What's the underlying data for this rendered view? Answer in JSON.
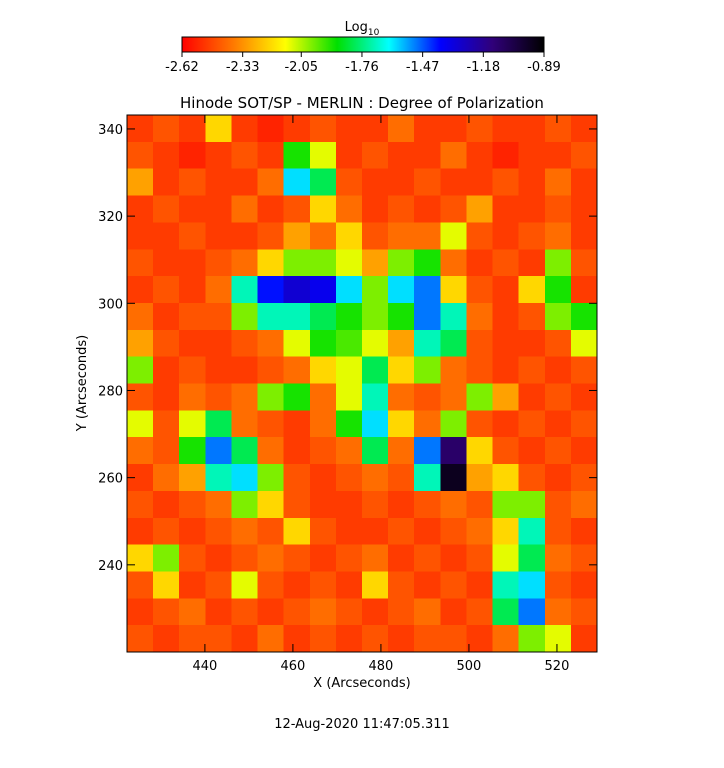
{
  "chart_data": {
    "type": "heatmap",
    "title": "Hinode SOT/SP - MERLIN : Degree of Polarization",
    "xlabel": "X (Arcseconds)",
    "ylabel": "Y (Arcseconds)",
    "footer": "12-Aug-2020 11:47:05.311",
    "colorbar_label": "Log",
    "colorbar_label_subscript": "10",
    "clim": [
      -2.62,
      -0.89
    ],
    "cticks": [
      -2.62,
      -2.33,
      -2.05,
      -1.76,
      -1.47,
      -1.18,
      -0.89
    ],
    "colormap": [
      "#ff0000",
      "#ff7a00",
      "#ffff00",
      "#00e000",
      "#00ffff",
      "#0000ff",
      "#30007a",
      "#000000"
    ],
    "xlim": [
      422.3,
      529.1
    ],
    "ylim": [
      220,
      343.2
    ],
    "xticks": [
      440,
      460,
      480,
      500,
      520
    ],
    "yticks": [
      240,
      260,
      280,
      300,
      320,
      340
    ],
    "z": [
      [
        -2.5,
        -2.45,
        -2.5,
        -2.2,
        -2.5,
        -2.55,
        -2.5,
        -2.45,
        -2.5,
        -2.5,
        -2.4,
        -2.5,
        -2.5,
        -2.45,
        -2.5,
        -2.5,
        -2.45,
        -2.5
      ],
      [
        -2.45,
        -2.5,
        -2.55,
        -2.5,
        -2.45,
        -2.5,
        -1.9,
        -2.1,
        -2.5,
        -2.45,
        -2.5,
        -2.5,
        -2.4,
        -2.5,
        -2.55,
        -2.5,
        -2.5,
        -2.45
      ],
      [
        -2.3,
        -2.5,
        -2.45,
        -2.5,
        -2.5,
        -2.4,
        -1.6,
        -1.8,
        -2.45,
        -2.5,
        -2.5,
        -2.45,
        -2.5,
        -2.5,
        -2.45,
        -2.5,
        -2.4,
        -2.5
      ],
      [
        -2.5,
        -2.45,
        -2.5,
        -2.5,
        -2.4,
        -2.5,
        -2.45,
        -2.2,
        -2.4,
        -2.5,
        -2.45,
        -2.5,
        -2.45,
        -2.3,
        -2.5,
        -2.5,
        -2.45,
        -2.5
      ],
      [
        -2.5,
        -2.5,
        -2.45,
        -2.5,
        -2.5,
        -2.45,
        -2.3,
        -2.4,
        -2.2,
        -2.45,
        -2.4,
        -2.4,
        -2.1,
        -2.45,
        -2.5,
        -2.45,
        -2.4,
        -2.5
      ],
      [
        -2.45,
        -2.5,
        -2.5,
        -2.45,
        -2.4,
        -2.2,
        -2.0,
        -2.0,
        -2.1,
        -2.3,
        -2.0,
        -1.9,
        -2.4,
        -2.5,
        -2.45,
        -2.5,
        -2.0,
        -2.45
      ],
      [
        -2.5,
        -2.45,
        -2.5,
        -2.4,
        -1.7,
        -1.4,
        -1.3,
        -1.35,
        -1.6,
        -2.0,
        -1.6,
        -1.5,
        -2.2,
        -2.45,
        -2.5,
        -2.2,
        -1.9,
        -2.5
      ],
      [
        -2.4,
        -2.5,
        -2.45,
        -2.45,
        -2.0,
        -1.7,
        -1.7,
        -1.8,
        -1.9,
        -2.0,
        -1.9,
        -1.5,
        -1.7,
        -2.4,
        -2.5,
        -2.45,
        -2.0,
        -1.9
      ],
      [
        -2.3,
        -2.45,
        -2.5,
        -2.5,
        -2.45,
        -2.4,
        -2.1,
        -1.9,
        -1.95,
        -2.1,
        -2.3,
        -1.7,
        -1.8,
        -2.45,
        -2.5,
        -2.5,
        -2.45,
        -2.1
      ],
      [
        -2.0,
        -2.5,
        -2.45,
        -2.5,
        -2.5,
        -2.45,
        -2.4,
        -2.2,
        -2.1,
        -1.8,
        -2.2,
        -2.0,
        -2.4,
        -2.45,
        -2.5,
        -2.45,
        -2.5,
        -2.45
      ],
      [
        -2.45,
        -2.5,
        -2.4,
        -2.45,
        -2.4,
        -2.0,
        -1.9,
        -2.4,
        -2.1,
        -1.7,
        -2.4,
        -2.45,
        -2.4,
        -2.0,
        -2.3,
        -2.5,
        -2.45,
        -2.5
      ],
      [
        -2.1,
        -2.45,
        -2.1,
        -1.8,
        -2.4,
        -2.45,
        -2.5,
        -2.4,
        -1.9,
        -1.6,
        -2.2,
        -2.4,
        -2.0,
        -2.45,
        -2.5,
        -2.45,
        -2.5,
        -2.45
      ],
      [
        -2.4,
        -2.45,
        -1.9,
        -1.5,
        -1.8,
        -2.4,
        -2.5,
        -2.45,
        -2.4,
        -1.8,
        -2.4,
        -1.5,
        -1.1,
        -2.2,
        -2.45,
        -2.5,
        -2.45,
        -2.5
      ],
      [
        -2.5,
        -2.4,
        -2.3,
        -1.7,
        -1.6,
        -2.0,
        -2.45,
        -2.5,
        -2.45,
        -2.4,
        -2.45,
        -1.7,
        -0.95,
        -2.3,
        -2.2,
        -2.45,
        -2.5,
        -2.45
      ],
      [
        -2.45,
        -2.5,
        -2.45,
        -2.4,
        -2.0,
        -2.2,
        -2.45,
        -2.5,
        -2.5,
        -2.45,
        -2.5,
        -2.45,
        -2.4,
        -2.45,
        -2.0,
        -2.0,
        -2.45,
        -2.4
      ],
      [
        -2.5,
        -2.45,
        -2.5,
        -2.45,
        -2.4,
        -2.45,
        -2.2,
        -2.45,
        -2.5,
        -2.5,
        -2.45,
        -2.5,
        -2.45,
        -2.4,
        -2.2,
        -1.7,
        -2.45,
        -2.5
      ],
      [
        -2.2,
        -2.0,
        -2.45,
        -2.5,
        -2.45,
        -2.4,
        -2.45,
        -2.5,
        -2.45,
        -2.4,
        -2.5,
        -2.45,
        -2.5,
        -2.45,
        -2.1,
        -1.8,
        -2.4,
        -2.45
      ],
      [
        -2.45,
        -2.2,
        -2.5,
        -2.45,
        -2.1,
        -2.45,
        -2.5,
        -2.45,
        -2.5,
        -2.2,
        -2.45,
        -2.5,
        -2.45,
        -2.5,
        -1.7,
        -1.6,
        -2.45,
        -2.5
      ],
      [
        -2.5,
        -2.45,
        -2.4,
        -2.5,
        -2.45,
        -2.5,
        -2.45,
        -2.4,
        -2.45,
        -2.5,
        -2.45,
        -2.4,
        -2.5,
        -2.45,
        -1.8,
        -1.5,
        -2.4,
        -2.45
      ],
      [
        -2.45,
        -2.5,
        -2.45,
        -2.45,
        -2.5,
        -2.4,
        -2.5,
        -2.45,
        -2.5,
        -2.45,
        -2.5,
        -2.45,
        -2.45,
        -2.5,
        -2.4,
        -2.0,
        -2.1,
        -2.5
      ]
    ]
  }
}
